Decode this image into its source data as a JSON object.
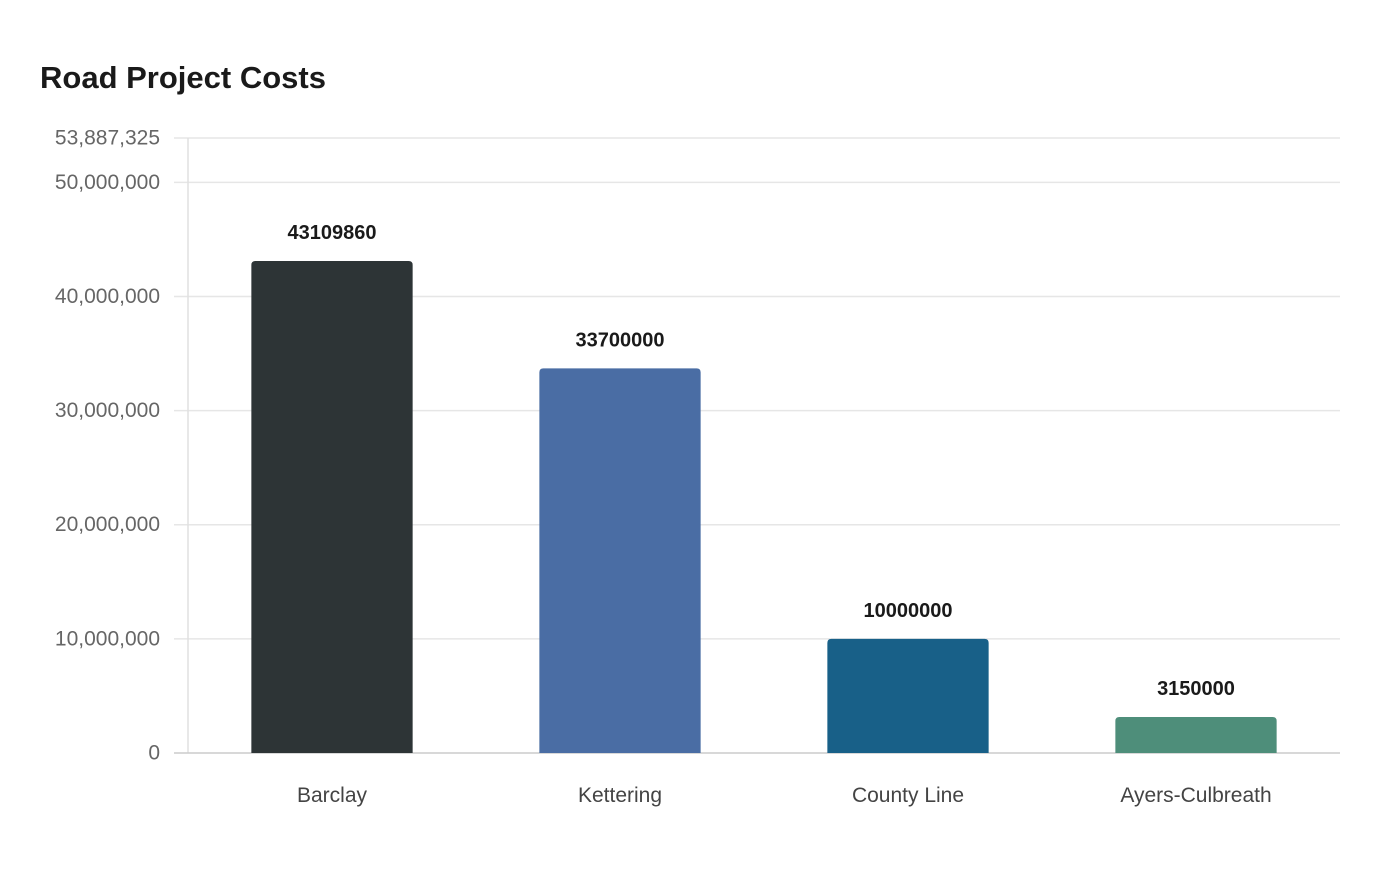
{
  "chart_data": {
    "type": "bar",
    "title": "Road Project Costs",
    "xlabel": "",
    "ylabel": "",
    "categories": [
      "Barclay",
      "Kettering",
      "County Line",
      "Ayers-Culbreath"
    ],
    "values": [
      43109860,
      33700000,
      10000000,
      3150000
    ],
    "data_labels": [
      "43109860",
      "33700000",
      "10000000",
      "3150000"
    ],
    "colors": [
      "#2d3436",
      "#4a6da4",
      "#186088",
      "#4e8e7a"
    ],
    "ylim": [
      0,
      53887325
    ],
    "y_ticks": [
      0,
      10000000,
      20000000,
      30000000,
      40000000,
      50000000,
      53887325
    ],
    "y_tick_labels": [
      "0",
      "10,000,000",
      "20,000,000",
      "30,000,000",
      "40,000,000",
      "50,000,000",
      "53,887,325"
    ],
    "grid": true,
    "legend": "none"
  }
}
